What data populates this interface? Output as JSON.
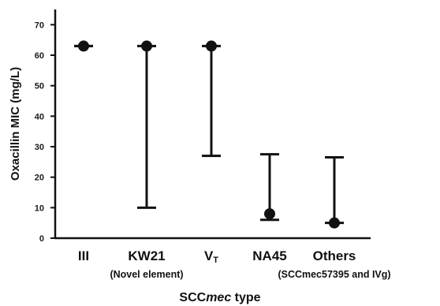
{
  "chart_data": {
    "type": "range",
    "ylabel": "Oxacillin MIC (mg/L)",
    "xlabel": {
      "prefix": "SCC",
      "italic": "mec",
      "suffix": " type"
    },
    "ylim": [
      0,
      75
    ],
    "yticks": [
      0,
      10,
      20,
      30,
      40,
      50,
      60,
      70
    ],
    "grid": false,
    "categories": [
      {
        "main": "III",
        "sub": "",
        "min": 63,
        "max": 63,
        "point": 63
      },
      {
        "main": "KW21",
        "sub": "(Novel element)",
        "min": 10,
        "max": 63,
        "point": 63
      },
      {
        "main": "V",
        "main_subscript": "T",
        "sub": "",
        "min": 27,
        "max": 63,
        "point": 63
      },
      {
        "main": "NA45",
        "sub": "",
        "min": 6,
        "max": 27.5,
        "point": 8
      },
      {
        "main": "Others",
        "sub": "(SCCmec57395 and IVg)",
        "min": 5,
        "max": 26.5,
        "point": 5
      }
    ],
    "colors": {
      "mark": "#111111",
      "axis": "#111111"
    }
  }
}
